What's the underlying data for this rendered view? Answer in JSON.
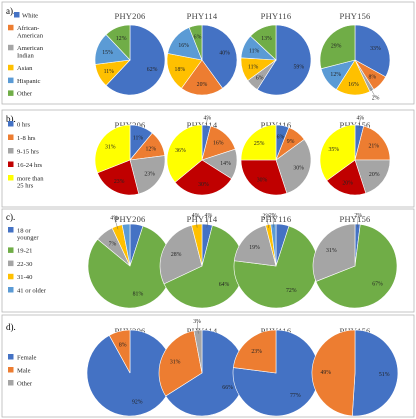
{
  "palette": {
    "blue": "#4472C4",
    "orange": "#ED7D31",
    "gray": "#A5A5A5",
    "yellow": "#FFC000",
    "lightblue": "#5B9BD5",
    "green": "#70AD47",
    "red": "#C00000",
    "brightyellow": "#FFFF00"
  },
  "chart_data": [
    {
      "panel": "a).",
      "type": "pie",
      "legend": [
        {
          "label": "White",
          "color": "blue"
        },
        {
          "label": "African-American",
          "color": "orange"
        },
        {
          "label": "American Indian",
          "color": "gray"
        },
        {
          "label": "Asian",
          "color": "yellow"
        },
        {
          "label": "Hispanic",
          "color": "lightblue"
        },
        {
          "label": "Other",
          "color": "green"
        }
      ],
      "legend_placement": "left",
      "pies": [
        {
          "title": "PHY206",
          "slices": [
            {
              "cat": "White",
              "value": 62,
              "label": "62%",
              "color": "blue"
            },
            {
              "cat": "African-American",
              "value": 0,
              "label": "",
              "color": "orange"
            },
            {
              "cat": "American Indian",
              "value": 0,
              "label": "",
              "color": "gray"
            },
            {
              "cat": "Asian",
              "value": 11,
              "label": "11%",
              "color": "yellow"
            },
            {
              "cat": "Hispanic",
              "value": 15,
              "label": "15%",
              "color": "lightblue"
            },
            {
              "cat": "Other",
              "value": 12,
              "label": "12%",
              "color": "green"
            }
          ]
        },
        {
          "title": "PHY114",
          "slices": [
            {
              "cat": "White",
              "value": 40,
              "label": "40%",
              "color": "blue"
            },
            {
              "cat": "African-American",
              "value": 20,
              "label": "20%",
              "color": "orange"
            },
            {
              "cat": "American Indian",
              "value": 0,
              "label": "",
              "color": "gray"
            },
            {
              "cat": "Asian",
              "value": 18,
              "label": "18%",
              "color": "yellow"
            },
            {
              "cat": "Hispanic",
              "value": 16,
              "label": "16%",
              "color": "lightblue"
            },
            {
              "cat": "Other",
              "value": 6,
              "label": "6%",
              "color": "green"
            }
          ]
        },
        {
          "title": "PHY116",
          "slices": [
            {
              "cat": "White",
              "value": 59,
              "label": "59%",
              "color": "blue"
            },
            {
              "cat": "African-American",
              "value": 0,
              "label": "",
              "color": "orange"
            },
            {
              "cat": "American Indian",
              "value": 6,
              "label": "6%",
              "color": "gray"
            },
            {
              "cat": "Asian",
              "value": 11,
              "label": "11%",
              "color": "yellow"
            },
            {
              "cat": "Hispanic",
              "value": 11,
              "label": "11%",
              "color": "lightblue"
            },
            {
              "cat": "Other",
              "value": 13,
              "label": "13%",
              "color": "green"
            }
          ]
        },
        {
          "title": "PHY156",
          "slices": [
            {
              "cat": "White",
              "value": 33,
              "label": "33%",
              "color": "blue"
            },
            {
              "cat": "African-American",
              "value": 8,
              "label": "8%",
              "color": "orange"
            },
            {
              "cat": "American Indian",
              "value": 2,
              "label": "2%",
              "color": "gray"
            },
            {
              "cat": "Asian",
              "value": 16,
              "label": "16%",
              "color": "yellow"
            },
            {
              "cat": "Hispanic",
              "value": 12,
              "label": "12%",
              "color": "lightblue"
            },
            {
              "cat": "Other",
              "value": 29,
              "label": "29%",
              "color": "green"
            }
          ]
        }
      ]
    },
    {
      "panel": "b).",
      "type": "pie",
      "legend": [
        {
          "label": "0 hrs",
          "color": "blue"
        },
        {
          "label": "1-8 hrs",
          "color": "orange"
        },
        {
          "label": "9-15 hrs",
          "color": "gray"
        },
        {
          "label": "16-24 hrs",
          "color": "red"
        },
        {
          "label": "more than 25 hrs",
          "color": "brightyellow"
        }
      ],
      "legend_placement": "left",
      "pies": [
        {
          "title": "PHY206",
          "slices": [
            {
              "cat": "0 hrs",
              "value": 11,
              "label": "11%",
              "color": "blue"
            },
            {
              "cat": "1-8 hrs",
              "value": 12,
              "label": "12%",
              "color": "orange"
            },
            {
              "cat": "9-15 hrs",
              "value": 23,
              "label": "23%",
              "color": "gray"
            },
            {
              "cat": "16-24 hrs",
              "value": 23,
              "label": "23%",
              "color": "red"
            },
            {
              "cat": "more than 25 hrs",
              "value": 31,
              "label": "31%",
              "color": "brightyellow"
            }
          ]
        },
        {
          "title": "PHY114",
          "slices": [
            {
              "cat": "0 hrs",
              "value": 4,
              "label": "4%",
              "color": "blue"
            },
            {
              "cat": "1-8 hrs",
              "value": 16,
              "label": "16%",
              "color": "orange"
            },
            {
              "cat": "9-15 hrs",
              "value": 14,
              "label": "14%",
              "color": "gray"
            },
            {
              "cat": "16-24 hrs",
              "value": 30,
              "label": "30%",
              "color": "red"
            },
            {
              "cat": "more than 25 hrs",
              "value": 36,
              "label": "36%",
              "color": "brightyellow"
            }
          ]
        },
        {
          "title": "PHY116",
          "slices": [
            {
              "cat": "0 hrs",
              "value": 6,
              "label": "6%",
              "color": "blue"
            },
            {
              "cat": "1-8 hrs",
              "value": 9,
              "label": "9%",
              "color": "orange"
            },
            {
              "cat": "9-15 hrs",
              "value": 30,
              "label": "30%",
              "color": "gray"
            },
            {
              "cat": "16-24 hrs",
              "value": 30,
              "label": "30%",
              "color": "red"
            },
            {
              "cat": "more than 25 hrs",
              "value": 25,
              "label": "25%",
              "color": "brightyellow"
            }
          ]
        },
        {
          "title": "PHY156",
          "slices": [
            {
              "cat": "0 hrs",
              "value": 4,
              "label": "4%",
              "color": "blue"
            },
            {
              "cat": "1-8 hrs",
              "value": 21,
              "label": "21%",
              "color": "orange"
            },
            {
              "cat": "9-15 hrs",
              "value": 20,
              "label": "20%",
              "color": "gray"
            },
            {
              "cat": "16-24 hrs",
              "value": 20,
              "label": "20%",
              "color": "red"
            },
            {
              "cat": "more than 25 hrs",
              "value": 35,
              "label": "35%",
              "color": "brightyellow"
            }
          ]
        }
      ]
    },
    {
      "panel": "c).",
      "type": "pie",
      "legend": [
        {
          "label": "18 or younger",
          "color": "blue"
        },
        {
          "label": "19-21",
          "color": "green"
        },
        {
          "label": "22-30",
          "color": "gray"
        },
        {
          "label": "31-40",
          "color": "yellow"
        },
        {
          "label": "41 or older",
          "color": "lightblue"
        }
      ],
      "legend_placement": "left",
      "pies": [
        {
          "title": "PHY206",
          "slices": [
            {
              "cat": "18 or younger",
              "value": 5,
              "label": "",
              "color": "blue"
            },
            {
              "cat": "19-21",
              "value": 81,
              "label": "81%",
              "color": "green"
            },
            {
              "cat": "22-30",
              "value": 7,
              "label": "7%",
              "color": "gray"
            },
            {
              "cat": "31-40",
              "value": 4,
              "label": "4%",
              "color": "yellow"
            },
            {
              "cat": "41 or older",
              "value": 3,
              "label": "",
              "color": "lightblue"
            }
          ]
        },
        {
          "title": "PHY114",
          "slices": [
            {
              "cat": "18 or younger",
              "value": 4,
              "label": "4%",
              "color": "blue"
            },
            {
              "cat": "19-21",
              "value": 64,
              "label": "64%",
              "color": "green"
            },
            {
              "cat": "22-30",
              "value": 28,
              "label": "28%",
              "color": "gray"
            },
            {
              "cat": "31-40",
              "value": 4,
              "label": "4%",
              "color": "yellow"
            },
            {
              "cat": "41 or older",
              "value": 0,
              "label": "",
              "color": "lightblue"
            }
          ]
        },
        {
          "title": "PHY116",
          "slices": [
            {
              "cat": "18 or younger",
              "value": 5,
              "label": "",
              "color": "blue"
            },
            {
              "cat": "19-21",
              "value": 72,
              "label": "72%",
              "color": "green"
            },
            {
              "cat": "22-30",
              "value": 19,
              "label": "19%",
              "color": "gray"
            },
            {
              "cat": "31-40",
              "value": 2,
              "label": "2%",
              "color": "yellow"
            },
            {
              "cat": "41 or older",
              "value": 2,
              "label": "2%",
              "color": "lightblue"
            }
          ]
        },
        {
          "title": "PHY156",
          "slices": [
            {
              "cat": "18 or younger",
              "value": 2,
              "label": "2%",
              "color": "blue"
            },
            {
              "cat": "19-21",
              "value": 67,
              "label": "67%",
              "color": "green"
            },
            {
              "cat": "22-30",
              "value": 31,
              "label": "31%",
              "color": "gray"
            },
            {
              "cat": "31-40",
              "value": 0,
              "label": "",
              "color": "yellow"
            },
            {
              "cat": "41 or older",
              "value": 0,
              "label": "",
              "color": "lightblue"
            }
          ]
        }
      ]
    },
    {
      "panel": "d).",
      "type": "pie",
      "legend": [
        {
          "label": "Female",
          "color": "blue"
        },
        {
          "label": "Male",
          "color": "orange"
        },
        {
          "label": "Other",
          "color": "gray"
        }
      ],
      "legend_placement": "left",
      "pies": [
        {
          "title": "PHY206",
          "slices": [
            {
              "cat": "Female",
              "value": 92,
              "label": "92%",
              "color": "blue"
            },
            {
              "cat": "Male",
              "value": 8,
              "label": "8%",
              "color": "orange"
            },
            {
              "cat": "Other",
              "value": 0,
              "label": "",
              "color": "gray"
            }
          ]
        },
        {
          "title": "PHY114",
          "slices": [
            {
              "cat": "Female",
              "value": 66,
              "label": "66%",
              "color": "blue"
            },
            {
              "cat": "Male",
              "value": 31,
              "label": "31%",
              "color": "orange"
            },
            {
              "cat": "Other",
              "value": 3,
              "label": "3%",
              "color": "gray"
            }
          ]
        },
        {
          "title": "PHY116",
          "slices": [
            {
              "cat": "Female",
              "value": 77,
              "label": "77%",
              "color": "blue"
            },
            {
              "cat": "Male",
              "value": 23,
              "label": "23%",
              "color": "orange"
            },
            {
              "cat": "Other",
              "value": 0,
              "label": "",
              "color": "gray"
            }
          ]
        },
        {
          "title": "PHY156",
          "slices": [
            {
              "cat": "Female",
              "value": 51,
              "label": "51%",
              "color": "blue"
            },
            {
              "cat": "Male",
              "value": 49,
              "label": "49%",
              "color": "orange"
            },
            {
              "cat": "Other",
              "value": 0,
              "label": "",
              "color": "gray"
            }
          ]
        }
      ]
    }
  ]
}
